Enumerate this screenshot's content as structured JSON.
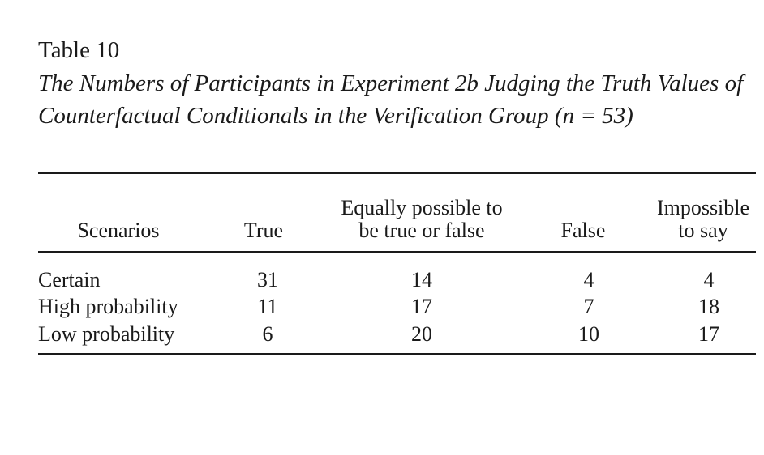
{
  "table": {
    "label": "Table 10",
    "title": "The Numbers of Participants in Experiment 2b Judging the Truth Values of Counterfactual Conditionals in the Verification Group (n = 53)",
    "columns": {
      "scenarios": "Scenarios",
      "true": "True",
      "equally_line1": "Equally possible to",
      "equally_line2": "be true or false",
      "false": "False",
      "impossible_line1": "Impossible",
      "impossible_line2": "to say"
    },
    "rows": [
      {
        "scenario": "Certain",
        "true": "31",
        "equally": "14",
        "false": "4",
        "impossible": "4"
      },
      {
        "scenario": "High probability",
        "true": "11",
        "equally": "17",
        "false": "7",
        "impossible": "18"
      },
      {
        "scenario": "Low probability",
        "true": "6",
        "equally": "20",
        "false": "10",
        "impossible": "17"
      }
    ]
  }
}
